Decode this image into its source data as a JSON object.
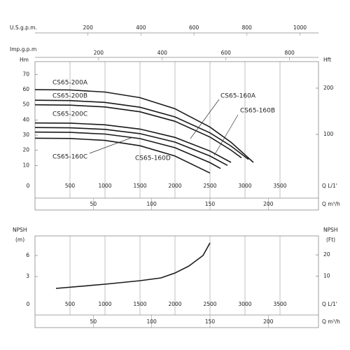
{
  "chart_data": [
    {
      "type": "line",
      "xlabel": "Q L/1'",
      "ylabel": "Hm",
      "y2label": "Hft",
      "xlim": [
        0,
        4050
      ],
      "xticks": [
        0,
        500,
        1000,
        1500,
        2000,
        2500,
        3000,
        3500
      ],
      "ylim": [
        0,
        78.5
      ],
      "yticks": [
        10,
        20,
        30,
        40,
        50,
        60,
        70
      ],
      "y2lim": [
        0,
        257.5
      ],
      "y2ticks": [
        100,
        200
      ],
      "top_axes": [
        {
          "label": "U.S.g.p.m.",
          "xlim": [
            0,
            1070
          ],
          "xticks": [
            200,
            400,
            600,
            800,
            1000
          ]
        },
        {
          "label": "Imp.g.p.m",
          "xlim": [
            0,
            891
          ],
          "xticks": [
            200,
            400,
            600,
            800
          ]
        }
      ],
      "bottom_axis": {
        "label": "Q m³/h",
        "xlim": [
          0,
          243
        ],
        "xticks": [
          50,
          100,
          150,
          200
        ]
      },
      "grid": true,
      "series": [
        {
          "name": "CS65-200A",
          "color": "#1a1a1a",
          "x": [
            0,
            500,
            1000,
            1500,
            2000,
            2500,
            2800,
            3120
          ],
          "values": [
            60,
            59.8,
            58.4,
            54.7,
            47.4,
            35.3,
            25.3,
            12
          ]
        },
        {
          "name": "CS65-200B",
          "color": "#1a1a1a",
          "x": [
            0,
            500,
            1000,
            1500,
            2000,
            2500,
            2800,
            3050
          ],
          "values": [
            53,
            52.8,
            51.6,
            48.4,
            42.0,
            31.5,
            22.8,
            14
          ]
        },
        {
          "name": "CS65-200C",
          "color": "#1a1a1a",
          "x": [
            0,
            500,
            1000,
            1500,
            2000,
            2500,
            2800,
            2950
          ],
          "values": [
            50,
            49.8,
            48.6,
            45.4,
            39.1,
            28.7,
            20.1,
            15
          ]
        },
        {
          "name": "CS65-160A",
          "color": "#1a1a1a",
          "x": [
            0,
            500,
            1000,
            1500,
            2000,
            2500,
            2800
          ],
          "values": [
            38,
            37.9,
            36.8,
            34.0,
            28.5,
            19.5,
            12
          ]
        },
        {
          "name": "CS65-160B",
          "color": "#1a1a1a",
          "x": [
            0,
            500,
            1000,
            1500,
            2000,
            2500,
            2750
          ],
          "values": [
            35,
            34.8,
            33.8,
            31.0,
            25.4,
            16.2,
            10
          ]
        },
        {
          "name": "CS65-160C",
          "color": "#1a1a1a",
          "x": [
            0,
            500,
            1000,
            1500,
            2000,
            2500,
            2650
          ],
          "values": [
            32,
            31.8,
            30.7,
            27.7,
            21.7,
            11.8,
            8
          ]
        },
        {
          "name": "CS65-160D",
          "color": "#1a1a1a",
          "x": [
            0,
            500,
            1000,
            1500,
            2000,
            2500
          ],
          "values": [
            28,
            27.8,
            26.5,
            23.0,
            16.2,
            5
          ]
        }
      ]
    },
    {
      "type": "line",
      "xlabel": "Q L/1'",
      "ylabel": "NPSH",
      "y_unit": "(m)",
      "y2label": "NPSH",
      "y2_unit": "(Ft)",
      "xlim": [
        0,
        4050
      ],
      "xticks": [
        0,
        500,
        1000,
        1500,
        2000,
        2500,
        3000,
        3500
      ],
      "ylim": [
        -0.5,
        8.8
      ],
      "yticks": [
        3,
        6
      ],
      "y2lim": [
        -1.64,
        28.87
      ],
      "y2ticks": [
        10,
        20
      ],
      "bottom_axis": {
        "label": "Q m³/h",
        "xlim": [
          0,
          243
        ],
        "xticks": [
          50,
          100,
          150,
          200
        ]
      },
      "grid": true,
      "series": [
        {
          "color": "#1a1a1a",
          "x": [
            300,
            1000,
            1500,
            1800,
            2000,
            2200,
            2400,
            2500
          ],
          "values": [
            1.3,
            1.9,
            2.4,
            2.8,
            3.5,
            4.5,
            6.0,
            7.8
          ]
        }
      ]
    }
  ]
}
